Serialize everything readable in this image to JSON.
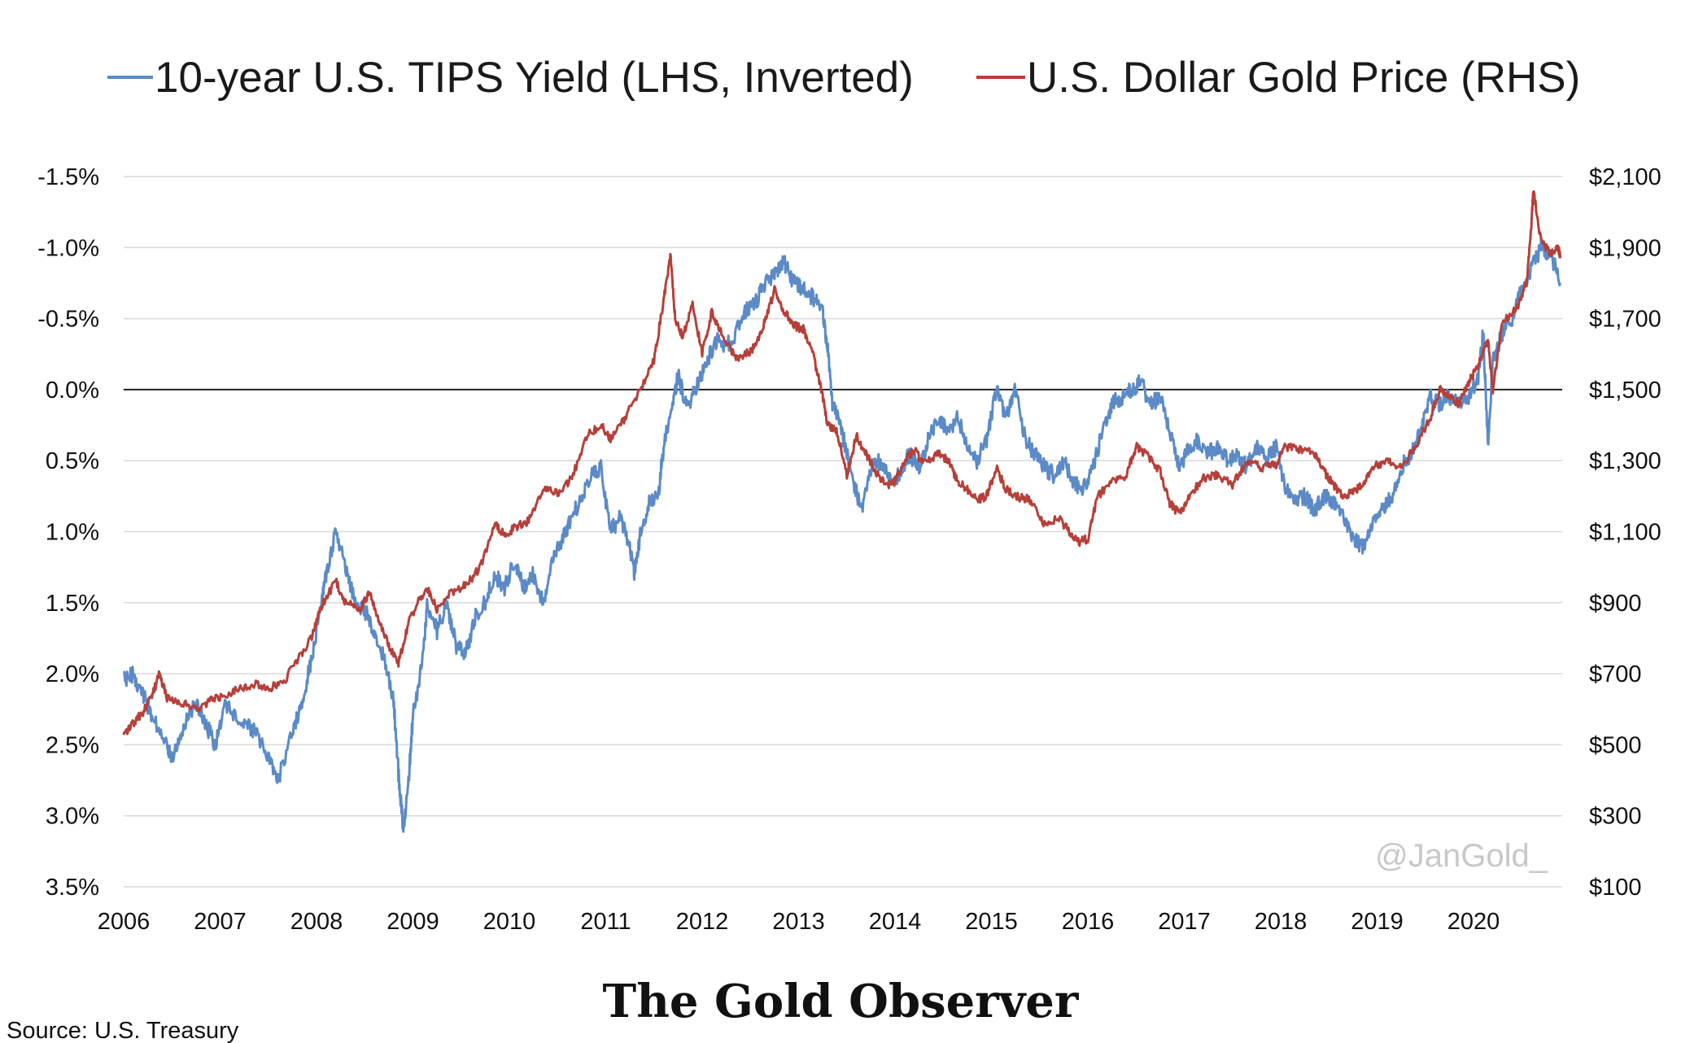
{
  "chart_data": {
    "type": "line",
    "title": "",
    "legend": {
      "position": "top",
      "entries": [
        "10-year U.S. TIPS Yield (LHS, Inverted)",
        "U.S. Dollar Gold Price (RHS)"
      ]
    },
    "grid": true,
    "x": {
      "ticks": [
        "2006",
        "2007",
        "2008",
        "2009",
        "2010",
        "2011",
        "2012",
        "2013",
        "2014",
        "2015",
        "2016",
        "2017",
        "2018",
        "2019",
        "2020"
      ],
      "range": [
        2006,
        2020.9
      ]
    },
    "y_left": {
      "ticks": [
        "-1.5%",
        "-1.0%",
        "-0.5%",
        "0.0%",
        "0.5%",
        "1.0%",
        "1.5%",
        "2.0%",
        "2.5%",
        "3.0%",
        "3.5%"
      ],
      "range": [
        -1.5,
        3.5
      ],
      "inverted": true,
      "unit": "%"
    },
    "y_right": {
      "ticks": [
        "$2,100",
        "$1,900",
        "$1,700",
        "$1,500",
        "$1,300",
        "$1,100",
        "$900",
        "$700",
        "$500",
        "$300",
        "$100"
      ],
      "range": [
        100,
        2100
      ],
      "unit": "USD"
    },
    "series": [
      {
        "name": "10-year U.S. TIPS Yield (LHS, Inverted)",
        "axis": "left",
        "color": "#5b8ac7",
        "points": [
          [
            2006.0,
            2.05
          ],
          [
            2006.1,
            2.0
          ],
          [
            2006.2,
            2.15
          ],
          [
            2006.3,
            2.3
          ],
          [
            2006.45,
            2.5
          ],
          [
            2006.5,
            2.6
          ],
          [
            2006.6,
            2.4
          ],
          [
            2006.75,
            2.2
          ],
          [
            2006.85,
            2.35
          ],
          [
            2006.95,
            2.5
          ],
          [
            2007.05,
            2.2
          ],
          [
            2007.2,
            2.35
          ],
          [
            2007.35,
            2.4
          ],
          [
            2007.5,
            2.6
          ],
          [
            2007.6,
            2.75
          ],
          [
            2007.75,
            2.4
          ],
          [
            2007.85,
            2.2
          ],
          [
            2007.95,
            1.9
          ],
          [
            2008.05,
            1.5
          ],
          [
            2008.1,
            1.3
          ],
          [
            2008.2,
            1.0
          ],
          [
            2008.3,
            1.25
          ],
          [
            2008.4,
            1.5
          ],
          [
            2008.5,
            1.55
          ],
          [
            2008.6,
            1.7
          ],
          [
            2008.7,
            1.9
          ],
          [
            2008.8,
            2.2
          ],
          [
            2008.85,
            2.7
          ],
          [
            2008.9,
            3.1
          ],
          [
            2008.95,
            2.8
          ],
          [
            2009.0,
            2.3
          ],
          [
            2009.1,
            1.9
          ],
          [
            2009.15,
            1.5
          ],
          [
            2009.25,
            1.7
          ],
          [
            2009.35,
            1.5
          ],
          [
            2009.45,
            1.8
          ],
          [
            2009.55,
            1.85
          ],
          [
            2009.65,
            1.6
          ],
          [
            2009.75,
            1.5
          ],
          [
            2009.85,
            1.3
          ],
          [
            2009.95,
            1.4
          ],
          [
            2010.05,
            1.2
          ],
          [
            2010.15,
            1.4
          ],
          [
            2010.25,
            1.3
          ],
          [
            2010.35,
            1.5
          ],
          [
            2010.45,
            1.2
          ],
          [
            2010.55,
            1.05
          ],
          [
            2010.65,
            0.9
          ],
          [
            2010.75,
            0.75
          ],
          [
            2010.85,
            0.6
          ],
          [
            2010.95,
            0.55
          ],
          [
            2011.05,
            1.0
          ],
          [
            2011.15,
            0.9
          ],
          [
            2011.25,
            1.1
          ],
          [
            2011.3,
            1.3
          ],
          [
            2011.35,
            1.05
          ],
          [
            2011.45,
            0.8
          ],
          [
            2011.55,
            0.7
          ],
          [
            2011.6,
            0.4
          ],
          [
            2011.7,
            0.1
          ],
          [
            2011.75,
            -0.1
          ],
          [
            2011.85,
            0.15
          ],
          [
            2011.95,
            -0.05
          ],
          [
            2012.05,
            -0.2
          ],
          [
            2012.15,
            -0.35
          ],
          [
            2012.25,
            -0.3
          ],
          [
            2012.35,
            -0.4
          ],
          [
            2012.45,
            -0.55
          ],
          [
            2012.55,
            -0.6
          ],
          [
            2012.65,
            -0.75
          ],
          [
            2012.75,
            -0.8
          ],
          [
            2012.85,
            -0.9
          ],
          [
            2012.95,
            -0.75
          ],
          [
            2013.05,
            -0.7
          ],
          [
            2013.15,
            -0.65
          ],
          [
            2013.25,
            -0.55
          ],
          [
            2013.3,
            -0.3
          ],
          [
            2013.35,
            0.1
          ],
          [
            2013.45,
            0.3
          ],
          [
            2013.55,
            0.6
          ],
          [
            2013.65,
            0.85
          ],
          [
            2013.75,
            0.55
          ],
          [
            2013.85,
            0.5
          ],
          [
            2013.95,
            0.65
          ],
          [
            2014.05,
            0.6
          ],
          [
            2014.15,
            0.45
          ],
          [
            2014.25,
            0.55
          ],
          [
            2014.35,
            0.35
          ],
          [
            2014.45,
            0.2
          ],
          [
            2014.55,
            0.3
          ],
          [
            2014.65,
            0.2
          ],
          [
            2014.75,
            0.4
          ],
          [
            2014.85,
            0.5
          ],
          [
            2014.95,
            0.35
          ],
          [
            2015.05,
            -0.0
          ],
          [
            2015.15,
            0.2
          ],
          [
            2015.25,
            -0.0
          ],
          [
            2015.35,
            0.35
          ],
          [
            2015.45,
            0.45
          ],
          [
            2015.55,
            0.55
          ],
          [
            2015.65,
            0.6
          ],
          [
            2015.75,
            0.5
          ],
          [
            2015.85,
            0.65
          ],
          [
            2015.95,
            0.7
          ],
          [
            2016.05,
            0.55
          ],
          [
            2016.15,
            0.3
          ],
          [
            2016.25,
            0.1
          ],
          [
            2016.35,
            0.05
          ],
          [
            2016.45,
            -0.0
          ],
          [
            2016.55,
            -0.05
          ],
          [
            2016.65,
            0.1
          ],
          [
            2016.75,
            0.05
          ],
          [
            2016.85,
            0.3
          ],
          [
            2016.95,
            0.55
          ],
          [
            2017.05,
            0.4
          ],
          [
            2017.15,
            0.35
          ],
          [
            2017.25,
            0.45
          ],
          [
            2017.35,
            0.4
          ],
          [
            2017.45,
            0.5
          ],
          [
            2017.55,
            0.45
          ],
          [
            2017.65,
            0.55
          ],
          [
            2017.75,
            0.4
          ],
          [
            2017.85,
            0.5
          ],
          [
            2017.95,
            0.4
          ],
          [
            2018.05,
            0.7
          ],
          [
            2018.15,
            0.8
          ],
          [
            2018.25,
            0.75
          ],
          [
            2018.35,
            0.85
          ],
          [
            2018.45,
            0.75
          ],
          [
            2018.55,
            0.8
          ],
          [
            2018.65,
            0.9
          ],
          [
            2018.75,
            1.05
          ],
          [
            2018.85,
            1.1
          ],
          [
            2018.95,
            0.95
          ],
          [
            2019.05,
            0.85
          ],
          [
            2019.15,
            0.75
          ],
          [
            2019.25,
            0.55
          ],
          [
            2019.35,
            0.45
          ],
          [
            2019.45,
            0.3
          ],
          [
            2019.55,
            0.05
          ],
          [
            2019.65,
            0.1
          ],
          [
            2019.75,
            0.05
          ],
          [
            2019.85,
            0.1
          ],
          [
            2019.95,
            0.05
          ],
          [
            2020.05,
            -0.1
          ],
          [
            2020.1,
            -0.4
          ],
          [
            2020.15,
            0.4
          ],
          [
            2020.2,
            -0.2
          ],
          [
            2020.3,
            -0.4
          ],
          [
            2020.4,
            -0.5
          ],
          [
            2020.5,
            -0.7
          ],
          [
            2020.6,
            -0.85
          ],
          [
            2020.7,
            -1.0
          ],
          [
            2020.8,
            -0.95
          ],
          [
            2020.9,
            -0.75
          ]
        ]
      },
      {
        "name": "U.S. Dollar Gold Price (RHS)",
        "axis": "right",
        "color": "#b5403a",
        "points": [
          [
            2006.0,
            530
          ],
          [
            2006.1,
            560
          ],
          [
            2006.2,
            590
          ],
          [
            2006.3,
            640
          ],
          [
            2006.37,
            700
          ],
          [
            2006.45,
            630
          ],
          [
            2006.6,
            620
          ],
          [
            2006.75,
            600
          ],
          [
            2006.9,
            625
          ],
          [
            2007.05,
            640
          ],
          [
            2007.2,
            660
          ],
          [
            2007.35,
            670
          ],
          [
            2007.5,
            660
          ],
          [
            2007.65,
            670
          ],
          [
            2007.8,
            740
          ],
          [
            2007.95,
            800
          ],
          [
            2008.05,
            890
          ],
          [
            2008.2,
            960
          ],
          [
            2008.3,
            900
          ],
          [
            2008.45,
            880
          ],
          [
            2008.55,
            930
          ],
          [
            2008.65,
            850
          ],
          [
            2008.75,
            780
          ],
          [
            2008.85,
            730
          ],
          [
            2008.95,
            840
          ],
          [
            2009.05,
            900
          ],
          [
            2009.15,
            940
          ],
          [
            2009.25,
            880
          ],
          [
            2009.4,
            930
          ],
          [
            2009.55,
            950
          ],
          [
            2009.7,
            1000
          ],
          [
            2009.85,
            1120
          ],
          [
            2009.95,
            1090
          ],
          [
            2010.05,
            1110
          ],
          [
            2010.2,
            1130
          ],
          [
            2010.35,
            1220
          ],
          [
            2010.5,
            1210
          ],
          [
            2010.65,
            1250
          ],
          [
            2010.8,
            1370
          ],
          [
            2010.95,
            1400
          ],
          [
            2011.05,
            1360
          ],
          [
            2011.2,
            1420
          ],
          [
            2011.35,
            1500
          ],
          [
            2011.5,
            1580
          ],
          [
            2011.6,
            1750
          ],
          [
            2011.67,
            1880
          ],
          [
            2011.72,
            1700
          ],
          [
            2011.8,
            1650
          ],
          [
            2011.9,
            1740
          ],
          [
            2012.0,
            1600
          ],
          [
            2012.1,
            1720
          ],
          [
            2012.2,
            1660
          ],
          [
            2012.35,
            1590
          ],
          [
            2012.45,
            1600
          ],
          [
            2012.55,
            1620
          ],
          [
            2012.65,
            1690
          ],
          [
            2012.75,
            1780
          ],
          [
            2012.85,
            1720
          ],
          [
            2012.95,
            1680
          ],
          [
            2013.05,
            1670
          ],
          [
            2013.15,
            1600
          ],
          [
            2013.25,
            1480
          ],
          [
            2013.3,
            1400
          ],
          [
            2013.4,
            1380
          ],
          [
            2013.5,
            1260
          ],
          [
            2013.6,
            1370
          ],
          [
            2013.7,
            1320
          ],
          [
            2013.8,
            1270
          ],
          [
            2013.9,
            1230
          ],
          [
            2014.0,
            1240
          ],
          [
            2014.1,
            1300
          ],
          [
            2014.2,
            1330
          ],
          [
            2014.3,
            1290
          ],
          [
            2014.45,
            1320
          ],
          [
            2014.55,
            1300
          ],
          [
            2014.65,
            1240
          ],
          [
            2014.75,
            1220
          ],
          [
            2014.85,
            1190
          ],
          [
            2014.95,
            1200
          ],
          [
            2015.05,
            1280
          ],
          [
            2015.15,
            1220
          ],
          [
            2015.25,
            1200
          ],
          [
            2015.4,
            1190
          ],
          [
            2015.55,
            1120
          ],
          [
            2015.7,
            1140
          ],
          [
            2015.8,
            1100
          ],
          [
            2015.9,
            1070
          ],
          [
            2016.0,
            1080
          ],
          [
            2016.1,
            1200
          ],
          [
            2016.25,
            1240
          ],
          [
            2016.4,
            1260
          ],
          [
            2016.5,
            1340
          ],
          [
            2016.6,
            1320
          ],
          [
            2016.75,
            1270
          ],
          [
            2016.85,
            1180
          ],
          [
            2016.95,
            1150
          ],
          [
            2017.05,
            1200
          ],
          [
            2017.2,
            1250
          ],
          [
            2017.35,
            1260
          ],
          [
            2017.5,
            1230
          ],
          [
            2017.65,
            1300
          ],
          [
            2017.8,
            1280
          ],
          [
            2017.95,
            1290
          ],
          [
            2018.05,
            1340
          ],
          [
            2018.2,
            1330
          ],
          [
            2018.35,
            1320
          ],
          [
            2018.45,
            1270
          ],
          [
            2018.55,
            1230
          ],
          [
            2018.65,
            1200
          ],
          [
            2018.75,
            1210
          ],
          [
            2018.85,
            1230
          ],
          [
            2018.95,
            1280
          ],
          [
            2019.1,
            1300
          ],
          [
            2019.25,
            1280
          ],
          [
            2019.4,
            1340
          ],
          [
            2019.55,
            1420
          ],
          [
            2019.65,
            1500
          ],
          [
            2019.75,
            1480
          ],
          [
            2019.85,
            1460
          ],
          [
            2019.95,
            1520
          ],
          [
            2020.05,
            1570
          ],
          [
            2020.15,
            1640
          ],
          [
            2020.2,
            1500
          ],
          [
            2020.3,
            1690
          ],
          [
            2020.45,
            1730
          ],
          [
            2020.55,
            1800
          ],
          [
            2020.6,
            1960
          ],
          [
            2020.62,
            2060
          ],
          [
            2020.7,
            1920
          ],
          [
            2020.8,
            1880
          ],
          [
            2020.88,
            1900
          ],
          [
            2020.9,
            1870
          ]
        ]
      }
    ],
    "annotations": [
      "@JanGold_"
    ]
  },
  "footer": {
    "brand": "The Gold Observer",
    "source": "Source: U.S. Treasury"
  }
}
